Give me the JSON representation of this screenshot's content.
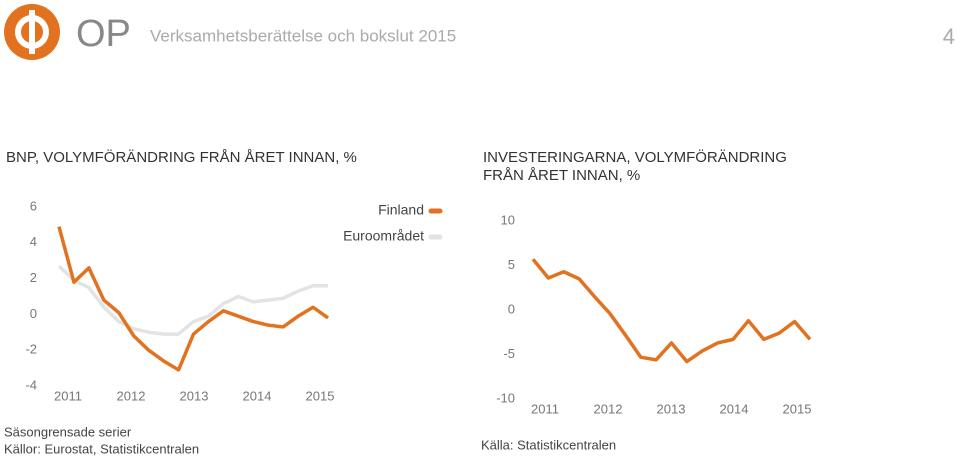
{
  "header": {
    "brand": "OP",
    "title": "Verksamhetsberättelse och bokslut 2015",
    "page": "4"
  },
  "chart_data": [
    {
      "type": "line",
      "title": "BNP, VOLYMFÖRÄNDRING FRÅN ÅRET INNAN, %",
      "categories": [
        null,
        null,
        null,
        null,
        null,
        null,
        null,
        null,
        null,
        null,
        null,
        null,
        null,
        null,
        null,
        null,
        null,
        null,
        null
      ],
      "x_labels": [
        "2011",
        "2012",
        "2013",
        "2014",
        "2015"
      ],
      "ylim": [
        -4,
        6
      ],
      "yticks": [
        6,
        4,
        2,
        0,
        -2,
        -4
      ],
      "legend": "top-right",
      "series": [
        {
          "name": "Finland",
          "color": "#e2721f",
          "values": [
            4.9,
            1.8,
            2.6,
            0.8,
            0.1,
            -1.2,
            -2.0,
            -2.6,
            -3.1,
            -1.1,
            -0.4,
            0.2,
            -0.1,
            -0.4,
            -0.6,
            -0.7,
            -0.1,
            0.4,
            -0.2
          ]
        },
        {
          "name": "Euroområdet",
          "color": "#e3e3e3",
          "values": [
            2.7,
            1.9,
            1.5,
            0.4,
            -0.4,
            -0.8,
            -1.0,
            -1.1,
            -1.1,
            -0.4,
            -0.1,
            0.6,
            1.0,
            0.7,
            0.8,
            0.9,
            1.3,
            1.6,
            1.6
          ]
        }
      ]
    },
    {
      "type": "line",
      "title": "INVESTERINGARNA, VOLYMFÖRÄNDRING FRÅN ÅRET INNAN, %",
      "categories": [
        null,
        null,
        null,
        null,
        null,
        null,
        null,
        null,
        null,
        null,
        null,
        null,
        null,
        null,
        null,
        null,
        null,
        null,
        null
      ],
      "x_labels": [
        "2011",
        "2012",
        "2013",
        "2014",
        "2015"
      ],
      "ylim": [
        -10,
        10
      ],
      "yticks": [
        10,
        5,
        0,
        -5,
        -10
      ],
      "series": [
        {
          "color": "#e2721f",
          "values": [
            5.7,
            3.6,
            4.3,
            3.5,
            1.5,
            -0.4,
            -2.8,
            -5.3,
            -5.6,
            -3.7,
            -5.8,
            -4.6,
            -3.7,
            -3.3,
            -1.2,
            -3.3,
            -2.6,
            -1.3,
            -3.3
          ]
        }
      ]
    }
  ],
  "footer": {
    "left": [
      "Säsongrensade serier",
      "Källor: Eurostat, Statistikcentralen"
    ],
    "right": "Källa: Statistikcentralen"
  }
}
